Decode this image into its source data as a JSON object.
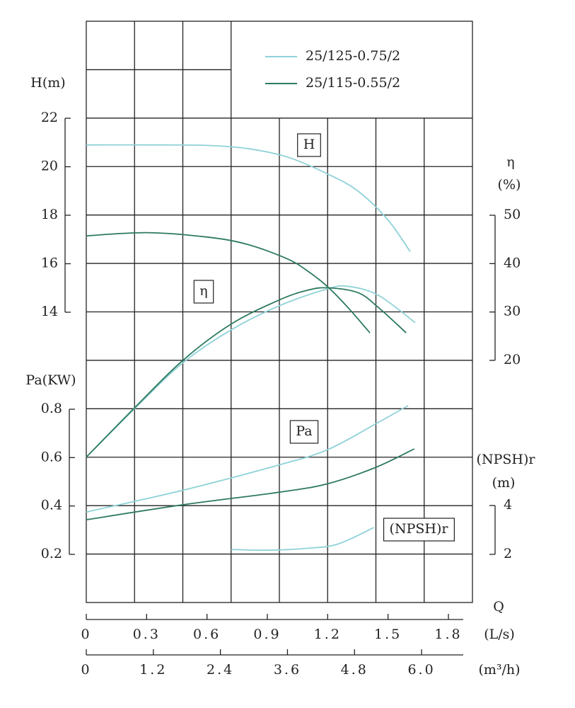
{
  "chart_data": {
    "type": "line",
    "x_axes": [
      {
        "name": "Q",
        "unit": "(L/s)",
        "lim": [
          0,
          1.8
        ],
        "ticks": [
          0,
          0.3,
          0.6,
          0.9,
          1.2,
          1.5,
          1.8
        ]
      },
      {
        "unit": "(m³/h)",
        "lim": [
          0,
          6.48
        ],
        "ticks": [
          0,
          1.2,
          2.4,
          3.6,
          4.8,
          {
            "value": 6,
            "label": "6.0"
          }
        ]
      }
    ],
    "y_axes": {
      "H": {
        "label": "H(m)",
        "lim": [
          14,
          22
        ],
        "ticks": [
          14,
          16,
          18,
          20,
          22
        ]
      },
      "eta": {
        "label": "η",
        "unit": "(%)",
        "lim": [
          20,
          50
        ],
        "ticks": [
          20,
          30,
          40,
          50
        ]
      },
      "Pa": {
        "label": "Pa(KW)",
        "lim": [
          0.2,
          0.8
        ],
        "ticks": [
          0.2,
          0.4,
          0.6,
          0.8
        ]
      },
      "NPSH": {
        "label": "(NPSH)r",
        "unit": "(m)",
        "lim": [
          2,
          4
        ],
        "ticks": [
          2,
          4
        ]
      }
    },
    "curve_labels": {
      "H": "H",
      "eta": "η",
      "Pa": "Pa",
      "NPSH": "(NPSH)r"
    },
    "series": [
      {
        "name": "25/125-0.75/2",
        "color": "#8fd2d8",
        "H": {
          "x": [
            0,
            0.3,
            0.6,
            0.8,
            1.0,
            1.2,
            1.35,
            1.5,
            1.61
          ],
          "values": [
            20.9,
            20.9,
            20.88,
            20.75,
            20.4,
            19.7,
            19.0,
            17.8,
            16.5
          ]
        },
        "eta": {
          "x": [
            0,
            0.24,
            0.48,
            0.72,
            0.96,
            1.2,
            1.3,
            1.45,
            1.635
          ],
          "values": [
            0,
            10,
            19.5,
            26.3,
            31.3,
            34.8,
            35.3,
            33.5,
            27.8
          ]
        },
        "Pa": {
          "x": [
            0,
            0.48,
            0.96,
            1.2,
            1.44,
            1.6
          ],
          "values": [
            0.375,
            0.465,
            0.57,
            0.633,
            0.74,
            0.815
          ]
        },
        "NPSH": {
          "x": [
            0.72,
            0.9,
            1.1,
            1.25,
            1.43
          ],
          "values": [
            2.2,
            2.17,
            2.25,
            2.42,
            3.1
          ]
        }
      },
      {
        "name": "25/115-0.55/2",
        "color": "#2d7a5f",
        "H": {
          "x": [
            0,
            0.3,
            0.6,
            0.8,
            1.0,
            1.1,
            1.2,
            1.3,
            1.41
          ],
          "values": [
            17.15,
            17.28,
            17.1,
            16.8,
            16.2,
            15.7,
            15.05,
            14.2,
            13.15
          ]
        },
        "eta": {
          "x": [
            0,
            0.24,
            0.48,
            0.72,
            0.96,
            1.1,
            1.2,
            1.35,
            1.45,
            1.59
          ],
          "values": [
            0,
            10.2,
            20,
            27.5,
            32.5,
            34.5,
            35,
            34,
            31,
            25.7
          ]
        },
        "Pa": {
          "x": [
            0,
            0.48,
            0.96,
            1.2,
            1.44,
            1.63
          ],
          "values": [
            0.343,
            0.405,
            0.457,
            0.492,
            0.56,
            0.636
          ]
        }
      }
    ]
  }
}
